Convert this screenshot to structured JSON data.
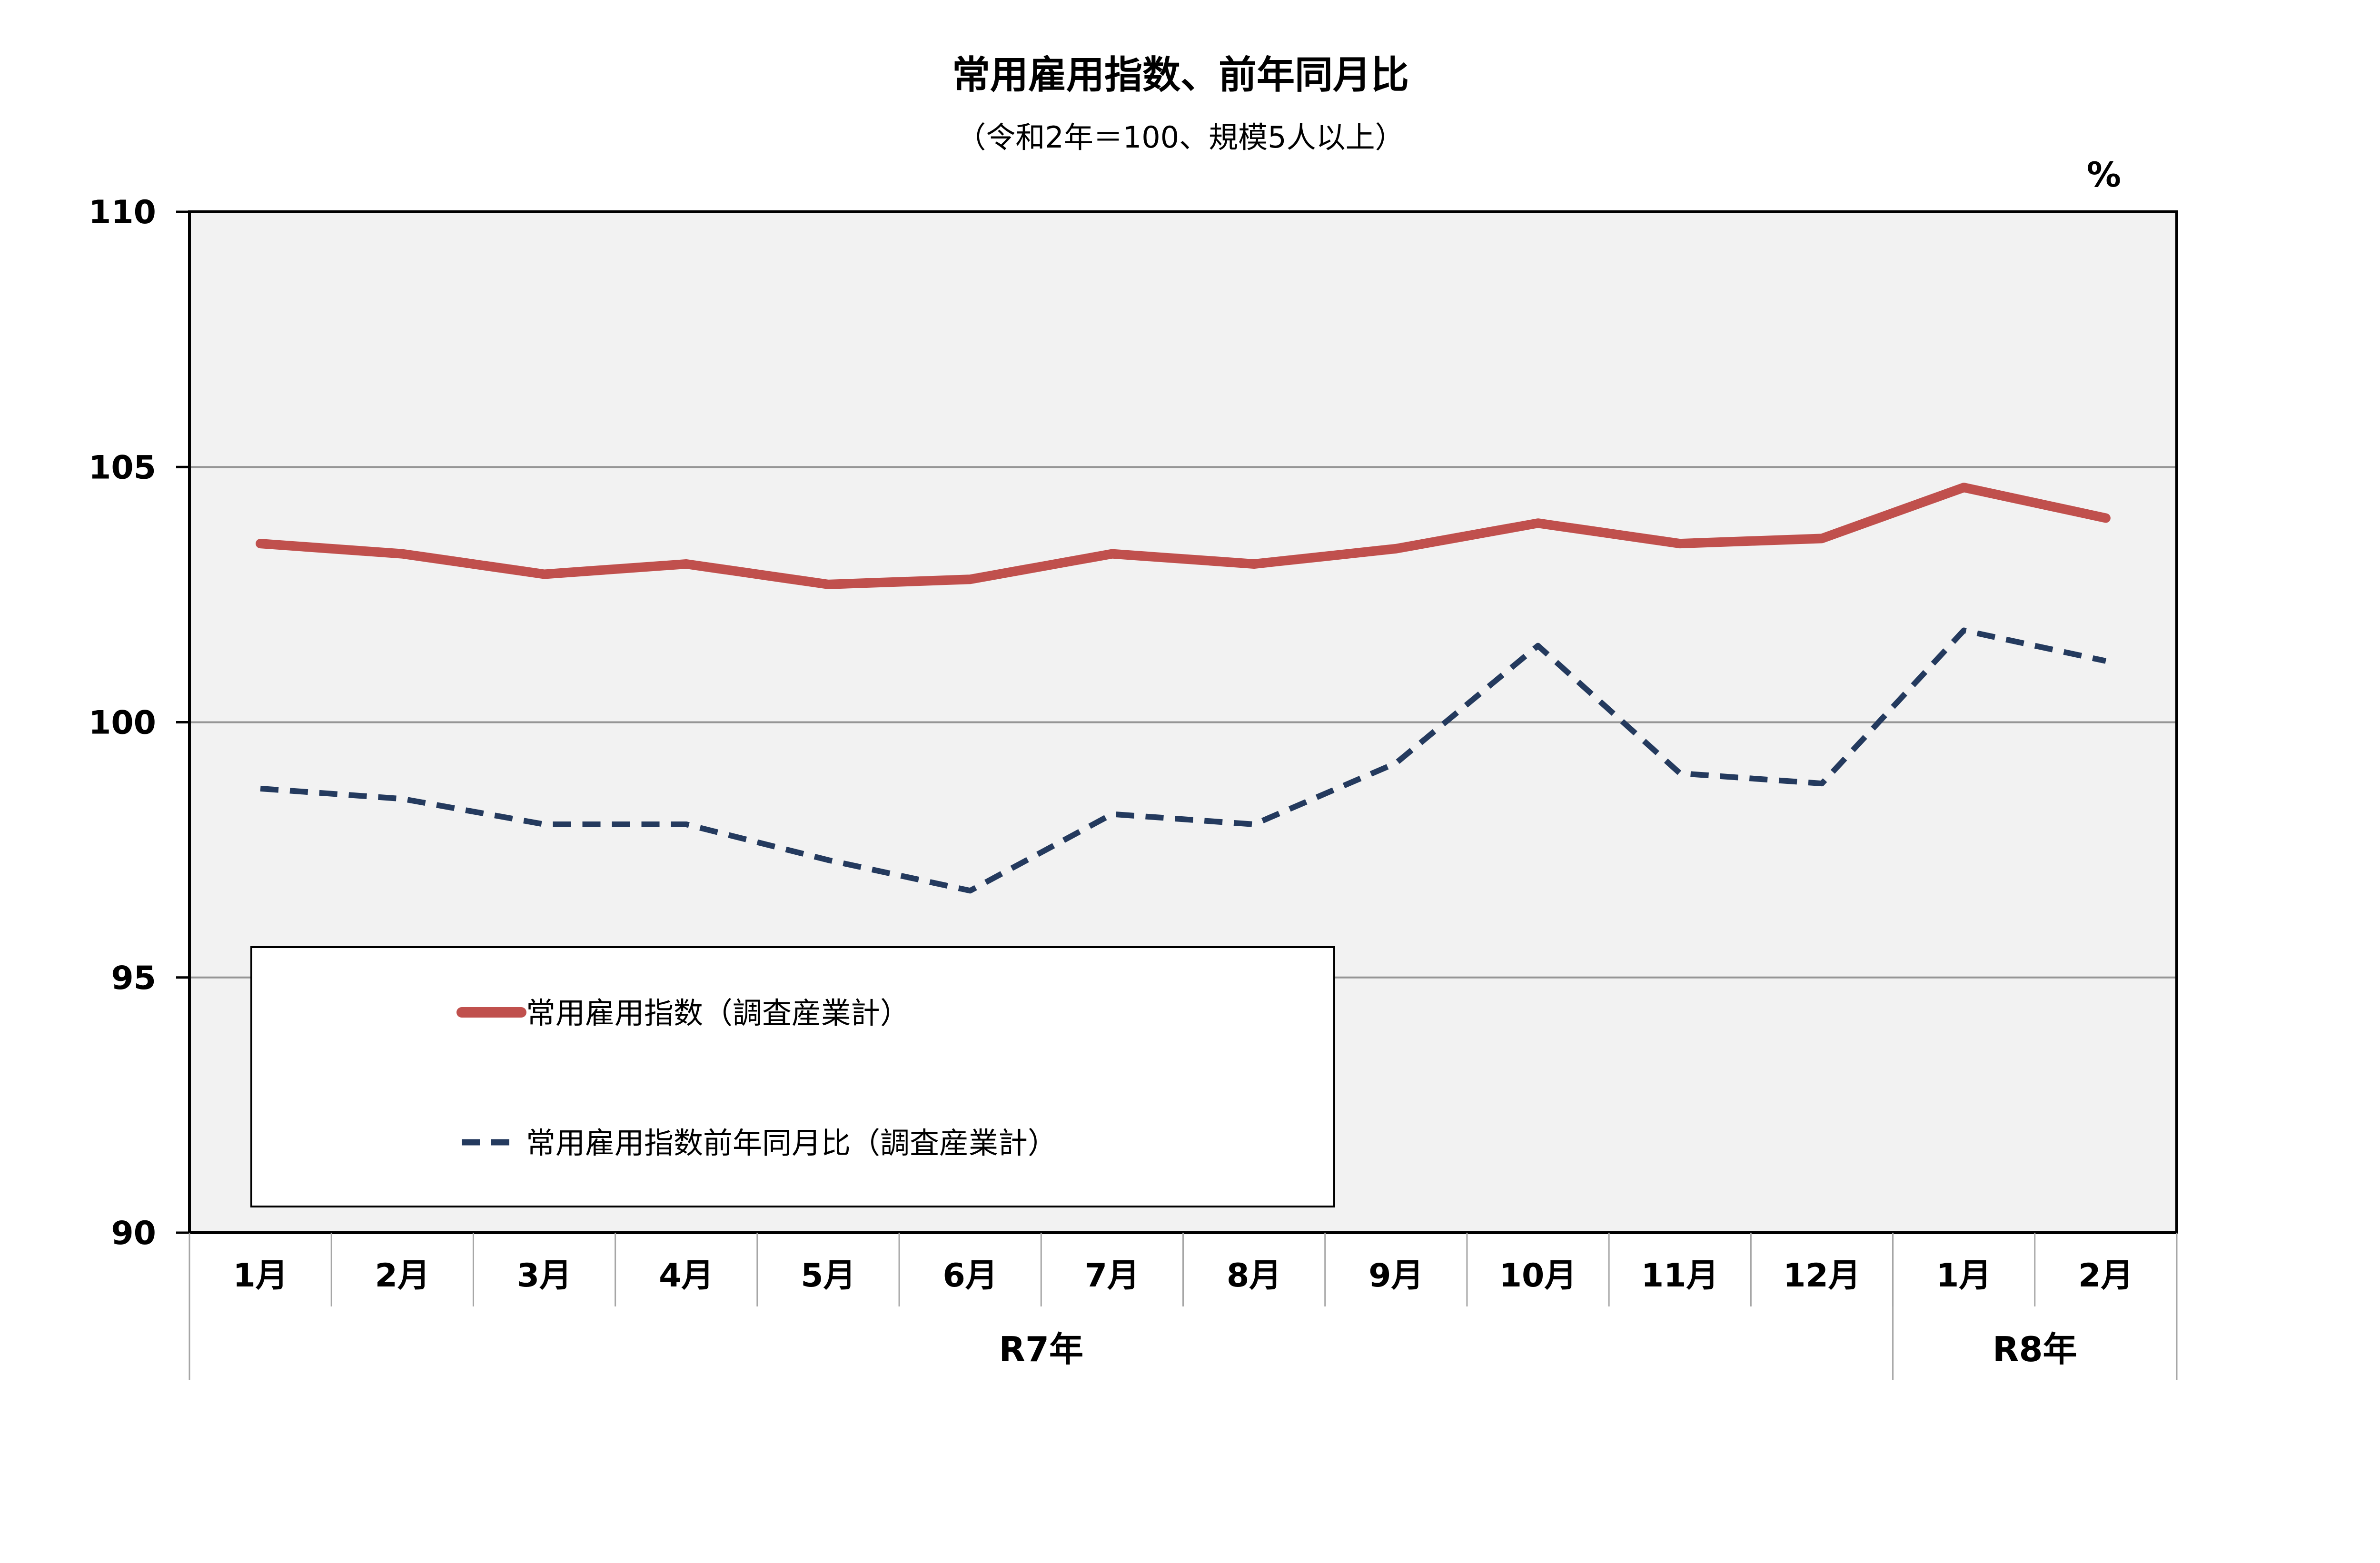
{
  "chart_data": {
    "type": "line",
    "title": "常用雇用指数、前年同月比",
    "subtitle": "（令和2年＝100、規模5人以上）",
    "unit": "%",
    "ylim": [
      90,
      110
    ],
    "yticks": [
      "90",
      "95",
      "100",
      "105",
      "110"
    ],
    "grid": true,
    "categories": [
      "1月",
      "2月",
      "3月",
      "4月",
      "5月",
      "6月",
      "7月",
      "8月",
      "9月",
      "10月",
      "11月",
      "12月",
      "1月",
      "2月"
    ],
    "groups": [
      {
        "label": "R7年",
        "count": 12
      },
      {
        "label": "R8年",
        "count": 2
      }
    ],
    "series": [
      {
        "name": "常用雇用指数（調査産業計）",
        "style": "solid",
        "color": "#C0504D",
        "values": [
          103.5,
          103.3,
          102.9,
          103.1,
          102.7,
          102.8,
          103.3,
          103.1,
          103.4,
          103.9,
          103.5,
          103.6,
          104.6,
          104.0
        ]
      },
      {
        "name": "常用雇用指数前年同月比（調査産業計）",
        "style": "dashed",
        "color": "#243A5E",
        "values": [
          98.7,
          98.5,
          98.0,
          98.0,
          97.3,
          96.7,
          98.2,
          98.0,
          99.2,
          101.5,
          99.0,
          98.8,
          101.8,
          101.2
        ]
      }
    ],
    "legend_position": "bottom-left, inside plot"
  },
  "colors": {
    "plot_background": "#F2F2F2",
    "gridline": "#969696",
    "axis": "#000000"
  }
}
